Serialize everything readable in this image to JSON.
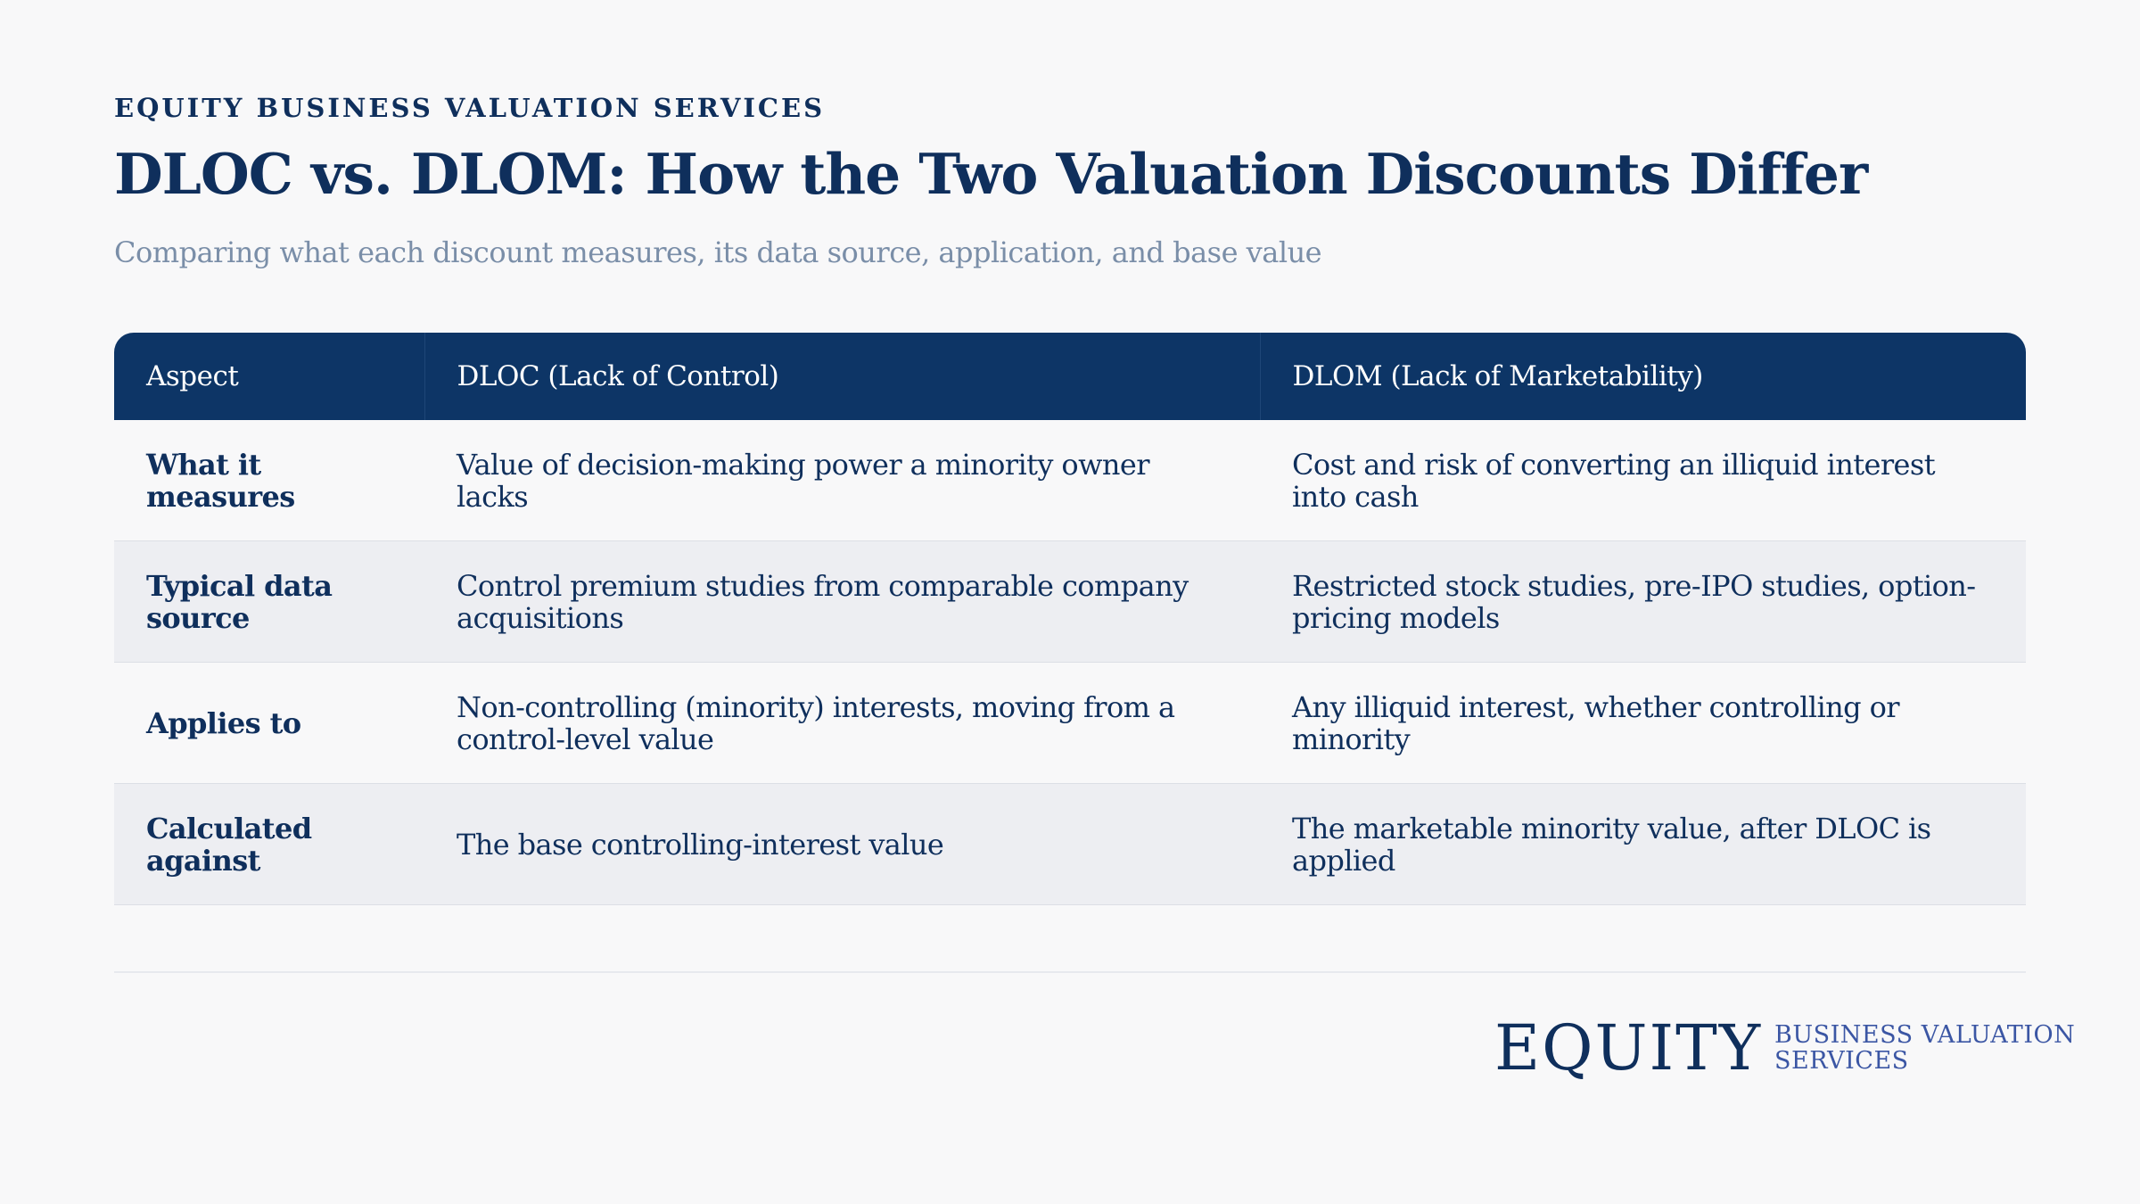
{
  "header": {
    "kicker": "EQUITY BUSINESS VALUATION SERVICES",
    "title": "DLOC vs. DLOM: How the Two Valuation Discounts Differ",
    "subtitle": "Comparing what each discount measures, its data source, application, and base value"
  },
  "table": {
    "columns": [
      "Aspect",
      "DLOC (Lack of Control)",
      "DLOM (Lack of Marketability)"
    ],
    "rows": [
      {
        "aspect": "What it measures",
        "dloc": "Value of decision-making power a minority owner lacks",
        "dlom": "Cost and risk of converting an illiquid interest into cash"
      },
      {
        "aspect": "Typical data source",
        "dloc": "Control premium studies from comparable company acquisitions",
        "dlom": "Restricted stock studies, pre-IPO studies, option-pricing models"
      },
      {
        "aspect": "Applies to",
        "dloc": "Non-controlling (minority) interests, moving from a control-level value",
        "dlom": "Any illiquid interest, whether controlling or minority"
      },
      {
        "aspect": "Calculated against",
        "dloc": "The base controlling-interest value",
        "dlom": "The marketable minority value, after DLOC is applied"
      }
    ]
  },
  "logo": {
    "wordmark": "EQUITY",
    "line1": "BUSINESS VALUATION",
    "line2": "SERVICES"
  },
  "colors": {
    "navy": "#0f2f5c",
    "header_bg": "#0d3566",
    "subtitle": "#7a8ea8",
    "logo_accent": "#3b56a4",
    "row_alt": "#edeef2"
  }
}
